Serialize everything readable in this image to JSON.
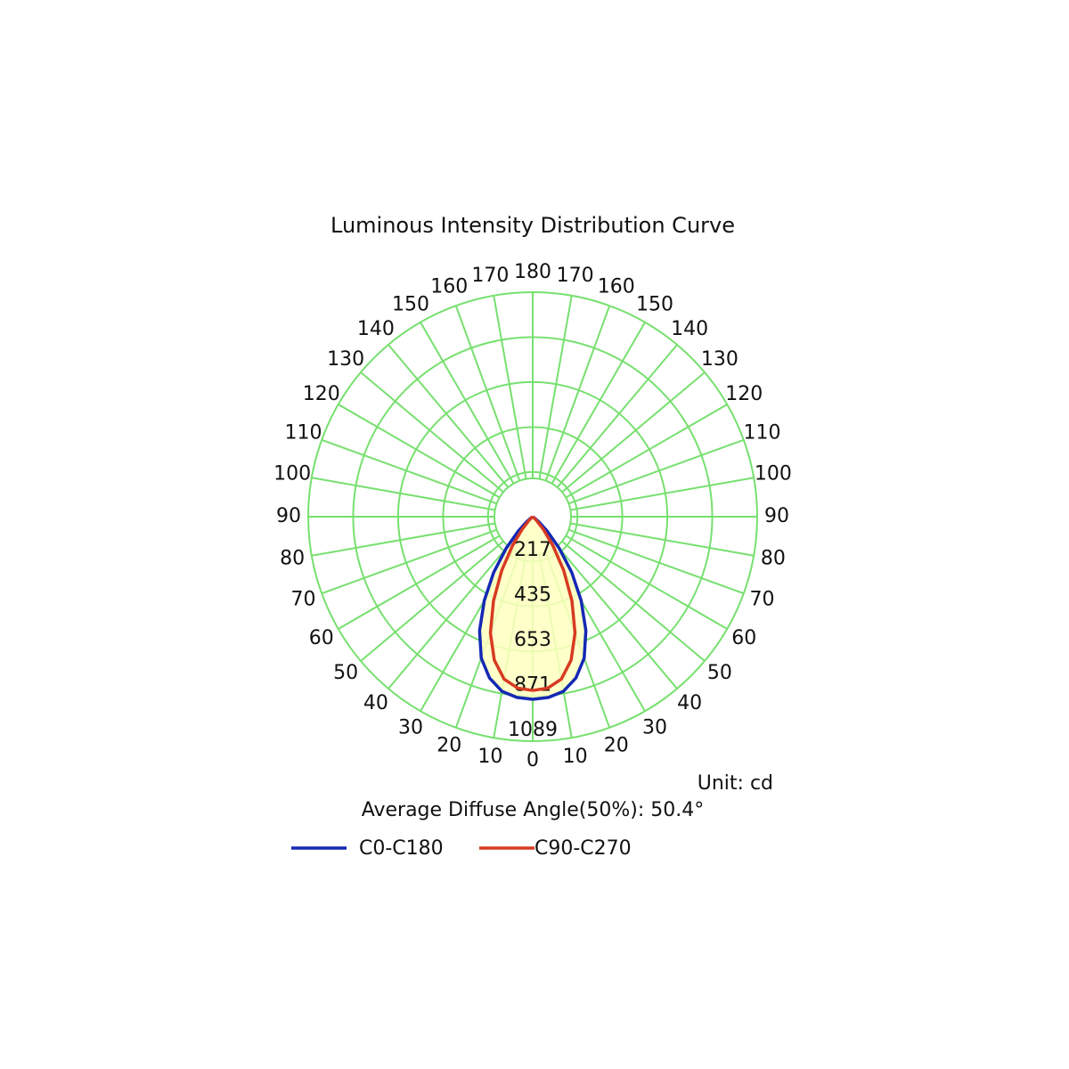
{
  "chart_data": {
    "type": "polar",
    "title": "Luminous Intensity Distribution Curve",
    "unit_label": "Unit: cd",
    "annotation": "Average Diffuse Angle(50%): 50.4°",
    "rlim": [
      0,
      1089
    ],
    "rticks": [
      217,
      435,
      653,
      871,
      1089
    ],
    "angle_ticks": [
      0,
      10,
      20,
      30,
      40,
      50,
      60,
      70,
      80,
      90,
      100,
      110,
      120,
      130,
      140,
      150,
      160,
      170,
      180
    ],
    "grid_color": "#77e06f",
    "fill_color": "#ffffc0",
    "x": [
      0,
      5,
      10,
      15,
      20,
      25,
      30,
      35,
      40,
      45,
      50,
      55,
      60,
      65,
      70,
      75,
      80,
      85,
      90
    ],
    "series": [
      {
        "name": "C0-C180",
        "color": "#1428b4",
        "values": [
          886,
          880,
          860,
          810,
          730,
          610,
          470,
          330,
          200,
          100,
          40,
          10,
          0,
          0,
          0,
          0,
          0,
          0,
          0
        ]
      },
      {
        "name": "C90-C270",
        "color": "#d83a22",
        "values": [
          843,
          835,
          800,
          720,
          600,
          450,
          300,
          170,
          80,
          25,
          5,
          0,
          0,
          0,
          0,
          0,
          0,
          0,
          0
        ]
      }
    ]
  }
}
